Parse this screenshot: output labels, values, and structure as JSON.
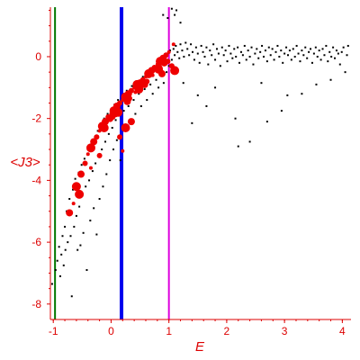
{
  "chart_data": {
    "type": "scatter",
    "title": "",
    "xlabel": "E",
    "ylabel": "<J3>",
    "xlim": [
      -1.05,
      4.15
    ],
    "ylim": [
      -8.5,
      1.6
    ],
    "xticks": [
      -1,
      0,
      1,
      2,
      3,
      4
    ],
    "yticks": [
      -8,
      -6,
      -4,
      -2,
      0
    ],
    "grid": false,
    "legend": "none",
    "colors": {
      "axis": "#dd0000",
      "small_points": "#000000",
      "large_points": "#ee0000",
      "line_green": "#007700",
      "line_blue": "#0000ee",
      "line_magenta": "#dd00dd"
    },
    "vertical_lines": [
      {
        "x": -0.97,
        "color": "#007700"
      },
      {
        "x": 0.18,
        "color": "#0000ee"
      },
      {
        "x": 1.0,
        "color": "#dd00dd"
      }
    ],
    "series": [
      {
        "points": [
          [
            -1.02,
            -7.35
          ],
          [
            -0.96,
            -6.9
          ],
          [
            -0.93,
            -6.6
          ],
          [
            -0.9,
            -6.15
          ],
          [
            -0.88,
            -7.1
          ],
          [
            -0.86,
            -6.4
          ],
          [
            -0.84,
            -5.8
          ],
          [
            -0.82,
            -6.75
          ],
          [
            -0.8,
            -5.5
          ],
          [
            -0.79,
            -6.25
          ],
          [
            -0.77,
            -5.0
          ],
          [
            -0.75,
            -6.0
          ],
          [
            -0.72,
            -4.6
          ],
          [
            -0.7,
            -5.8
          ],
          [
            -0.68,
            -7.75
          ],
          [
            -0.66,
            -4.3
          ],
          [
            -0.64,
            -5.5
          ],
          [
            -0.62,
            -3.95
          ],
          [
            -0.6,
            -5.15
          ],
          [
            -0.58,
            -6.25
          ],
          [
            -0.56,
            -3.75
          ],
          [
            -0.55,
            -4.85
          ],
          [
            -0.53,
            -6.1
          ],
          [
            -0.51,
            -3.5
          ],
          [
            -0.5,
            -4.5
          ],
          [
            -0.48,
            -5.7
          ],
          [
            -0.46,
            -3.3
          ],
          [
            -0.44,
            -4.2
          ],
          [
            -0.42,
            -6.9
          ],
          [
            -0.4,
            -3.0
          ],
          [
            -0.38,
            -4.0
          ],
          [
            -0.36,
            -5.3
          ],
          [
            -0.34,
            -2.8
          ],
          [
            -0.32,
            -3.7
          ],
          [
            -0.3,
            -4.9
          ],
          [
            -0.28,
            -2.6
          ],
          [
            -0.27,
            -3.45
          ],
          [
            -0.25,
            -5.75
          ],
          [
            -0.23,
            -2.4
          ],
          [
            -0.21,
            -3.2
          ],
          [
            -0.2,
            -4.6
          ],
          [
            -0.18,
            -2.2
          ],
          [
            -0.16,
            -3.0
          ],
          [
            -0.14,
            -4.2
          ],
          [
            -0.12,
            -2.0
          ],
          [
            -0.1,
            -2.75
          ],
          [
            -0.08,
            -3.8
          ],
          [
            -0.06,
            -1.85
          ],
          [
            -0.04,
            -2.5
          ],
          [
            -0.02,
            -3.35
          ],
          [
            0.0,
            -1.7
          ],
          [
            0.02,
            -2.3
          ],
          [
            0.04,
            -3.0
          ],
          [
            0.06,
            -1.55
          ],
          [
            0.08,
            -2.05
          ],
          [
            0.1,
            -2.7
          ],
          [
            0.12,
            -1.4
          ],
          [
            0.14,
            -1.9
          ],
          [
            0.16,
            -3.35
          ],
          [
            0.2,
            -1.25
          ],
          [
            0.22,
            -1.75
          ],
          [
            0.24,
            -2.35
          ],
          [
            0.27,
            -1.1
          ],
          [
            0.3,
            -1.6
          ],
          [
            0.33,
            -2.1
          ],
          [
            0.36,
            -0.95
          ],
          [
            0.39,
            -1.4
          ],
          [
            0.42,
            -1.85
          ],
          [
            0.45,
            -0.8
          ],
          [
            0.48,
            -1.2
          ],
          [
            0.52,
            -1.6
          ],
          [
            0.55,
            -0.65
          ],
          [
            0.58,
            -1.05
          ],
          [
            0.62,
            -1.4
          ],
          [
            0.65,
            -0.5
          ],
          [
            0.68,
            -0.9
          ],
          [
            0.72,
            -1.2
          ],
          [
            0.75,
            -0.35
          ],
          [
            0.78,
            -0.75
          ],
          [
            0.82,
            -1.0
          ],
          [
            0.85,
            -0.25
          ],
          [
            0.88,
            -0.6
          ],
          [
            0.91,
            -0.85
          ],
          [
            0.94,
            -0.15
          ],
          [
            0.96,
            -0.5
          ],
          [
            0.98,
            0.1
          ],
          [
            1.0,
            -0.3
          ],
          [
            1.02,
            0.2
          ],
          [
            1.05,
            -0.1
          ],
          [
            1.08,
            0.25
          ],
          [
            1.1,
            0.05
          ],
          [
            1.12,
            0.35
          ],
          [
            1.15,
            0.15
          ],
          [
            1.18,
            -0.05
          ],
          [
            1.2,
            0.4
          ],
          [
            1.23,
            0.2
          ],
          [
            1.26,
            0.0
          ],
          [
            1.29,
            0.45
          ],
          [
            1.32,
            0.25
          ],
          [
            1.35,
            0.05
          ],
          [
            1.38,
            0.4
          ],
          [
            1.41,
            0.15
          ],
          [
            1.44,
            -0.1
          ],
          [
            1.47,
            0.3
          ],
          [
            1.5,
            0.1
          ],
          [
            1.53,
            -0.2
          ],
          [
            1.56,
            0.35
          ],
          [
            1.59,
            0.15
          ],
          [
            1.62,
            0.0
          ],
          [
            1.65,
            0.3
          ],
          [
            1.68,
            -0.25
          ],
          [
            1.71,
            0.2
          ],
          [
            1.74,
            0.05
          ],
          [
            1.77,
            0.4
          ],
          [
            1.8,
            -0.1
          ],
          [
            1.83,
            0.25
          ],
          [
            1.86,
            0.1
          ],
          [
            1.89,
            -0.3
          ],
          [
            1.92,
            0.3
          ],
          [
            1.95,
            0.05
          ],
          [
            1.98,
            0.2
          ],
          [
            2.01,
            -0.15
          ],
          [
            2.04,
            0.35
          ],
          [
            2.07,
            0.1
          ],
          [
            2.1,
            -0.05
          ],
          [
            2.13,
            0.25
          ],
          [
            2.16,
            0.0
          ],
          [
            2.19,
            0.3
          ],
          [
            2.22,
            -0.2
          ],
          [
            2.25,
            0.15
          ],
          [
            2.28,
            0.05
          ],
          [
            2.31,
            0.35
          ],
          [
            2.34,
            -0.1
          ],
          [
            2.37,
            0.2
          ],
          [
            2.4,
            0.0
          ],
          [
            2.43,
            0.3
          ],
          [
            2.46,
            -0.25
          ],
          [
            2.49,
            0.1
          ],
          [
            2.52,
            0.25
          ],
          [
            2.55,
            -0.05
          ],
          [
            2.58,
            0.15
          ],
          [
            2.61,
            0.35
          ],
          [
            2.64,
            0.0
          ],
          [
            2.67,
            0.2
          ],
          [
            2.7,
            -0.15
          ],
          [
            2.73,
            0.3
          ],
          [
            2.76,
            0.05
          ],
          [
            2.79,
            0.25
          ],
          [
            2.82,
            -0.1
          ],
          [
            2.85,
            0.15
          ],
          [
            2.88,
            0.35
          ],
          [
            2.91,
            0.0
          ],
          [
            2.94,
            0.2
          ],
          [
            2.97,
            -0.2
          ],
          [
            3.0,
            0.1
          ],
          [
            3.03,
            0.3
          ],
          [
            3.06,
            0.05
          ],
          [
            3.09,
            0.2
          ],
          [
            3.12,
            -0.1
          ],
          [
            3.15,
            0.25
          ],
          [
            3.18,
            0.0
          ],
          [
            3.21,
            0.35
          ],
          [
            3.24,
            0.1
          ],
          [
            3.27,
            -0.15
          ],
          [
            3.3,
            0.2
          ],
          [
            3.33,
            0.05
          ],
          [
            3.36,
            0.3
          ],
          [
            3.39,
            -0.05
          ],
          [
            3.42,
            0.15
          ],
          [
            3.45,
            0.25
          ],
          [
            3.48,
            -0.2
          ],
          [
            3.51,
            0.1
          ],
          [
            3.54,
            0.3
          ],
          [
            3.57,
            0.0
          ],
          [
            3.6,
            0.2
          ],
          [
            3.63,
            -0.1
          ],
          [
            3.66,
            0.25
          ],
          [
            3.69,
            0.05
          ],
          [
            3.72,
            0.35
          ],
          [
            3.75,
            -0.15
          ],
          [
            3.78,
            0.15
          ],
          [
            3.81,
            0.0
          ],
          [
            3.84,
            0.3
          ],
          [
            3.87,
            -0.05
          ],
          [
            3.9,
            0.2
          ],
          [
            3.93,
            0.1
          ],
          [
            3.96,
            -0.25
          ],
          [
            3.99,
            0.15
          ],
          [
            4.02,
            0.3
          ],
          [
            4.05,
            -0.5
          ],
          [
            4.08,
            0.05
          ],
          [
            4.1,
            0.35
          ],
          [
            1.4,
            -2.15
          ],
          [
            1.65,
            -1.6
          ],
          [
            1.8,
            -1.0
          ],
          [
            2.15,
            -2.0
          ],
          [
            2.2,
            -2.9
          ],
          [
            2.4,
            -2.75
          ],
          [
            2.6,
            -0.85
          ],
          [
            2.7,
            -2.1
          ],
          [
            2.95,
            -1.75
          ],
          [
            3.05,
            -1.25
          ],
          [
            3.3,
            -1.2
          ],
          [
            3.55,
            -0.9
          ],
          [
            3.8,
            -0.75
          ],
          [
            1.5,
            -1.25
          ],
          [
            1.25,
            -0.85
          ],
          [
            1.1,
            1.35
          ],
          [
            1.13,
            1.5
          ],
          [
            1.05,
            1.55
          ],
          [
            1.2,
            1.1
          ],
          [
            0.9,
            1.35
          ],
          [
            0.98,
            1.25
          ]
        ],
        "point_size": "small"
      },
      {
        "points": [
          [
            -0.65,
            -4.75
          ],
          [
            -0.6,
            -4.2
          ],
          [
            -0.52,
            -3.8
          ],
          [
            -0.45,
            -3.45
          ],
          [
            -0.4,
            -3.15
          ],
          [
            -0.35,
            -2.95
          ],
          [
            -0.3,
            -2.75
          ],
          [
            -0.25,
            -2.6
          ],
          [
            -0.2,
            -2.4
          ],
          [
            -0.15,
            -2.25
          ],
          [
            -0.1,
            -2.1
          ],
          [
            -0.05,
            -1.95
          ],
          [
            0.0,
            -1.85
          ],
          [
            0.05,
            -1.75
          ],
          [
            0.1,
            -1.6
          ],
          [
            0.15,
            -1.5
          ],
          [
            0.2,
            -1.4
          ],
          [
            0.25,
            -1.3
          ],
          [
            0.3,
            -1.2
          ],
          [
            0.35,
            -1.1
          ],
          [
            0.4,
            -1.0
          ],
          [
            0.45,
            -0.9
          ],
          [
            0.5,
            -0.85
          ],
          [
            0.55,
            -0.75
          ],
          [
            0.6,
            -0.65
          ],
          [
            0.65,
            -0.55
          ],
          [
            0.7,
            -0.45
          ],
          [
            0.75,
            -0.35
          ],
          [
            0.8,
            -0.25
          ],
          [
            0.85,
            -0.15
          ],
          [
            0.9,
            -0.05
          ],
          [
            0.95,
            0.05
          ],
          [
            1.0,
            0.15
          ],
          [
            -0.12,
            -2.3
          ],
          [
            -0.02,
            -2.0
          ],
          [
            0.03,
            -1.95
          ],
          [
            0.08,
            -1.9
          ],
          [
            0.12,
            -1.8
          ],
          [
            0.28,
            -1.45
          ],
          [
            0.32,
            -1.35
          ],
          [
            0.42,
            -1.15
          ],
          [
            0.48,
            -1.05
          ],
          [
            0.58,
            -0.9
          ],
          [
            0.62,
            -0.8
          ],
          [
            0.72,
            -0.6
          ],
          [
            0.82,
            -0.4
          ],
          [
            0.92,
            -0.2
          ],
          [
            0.15,
            -2.6
          ],
          [
            0.2,
            -3.05
          ],
          [
            0.25,
            -2.3
          ],
          [
            0.35,
            -2.1
          ],
          [
            -0.2,
            -3.2
          ],
          [
            -0.35,
            -3.6
          ],
          [
            -0.55,
            -4.45
          ],
          [
            -0.72,
            -5.05
          ],
          [
            1.05,
            -0.3
          ],
          [
            1.08,
            0.4
          ],
          [
            1.1,
            -0.45
          ],
          [
            0.88,
            -0.55
          ],
          [
            0.98,
            -0.15
          ]
        ],
        "point_size": "large"
      }
    ]
  }
}
